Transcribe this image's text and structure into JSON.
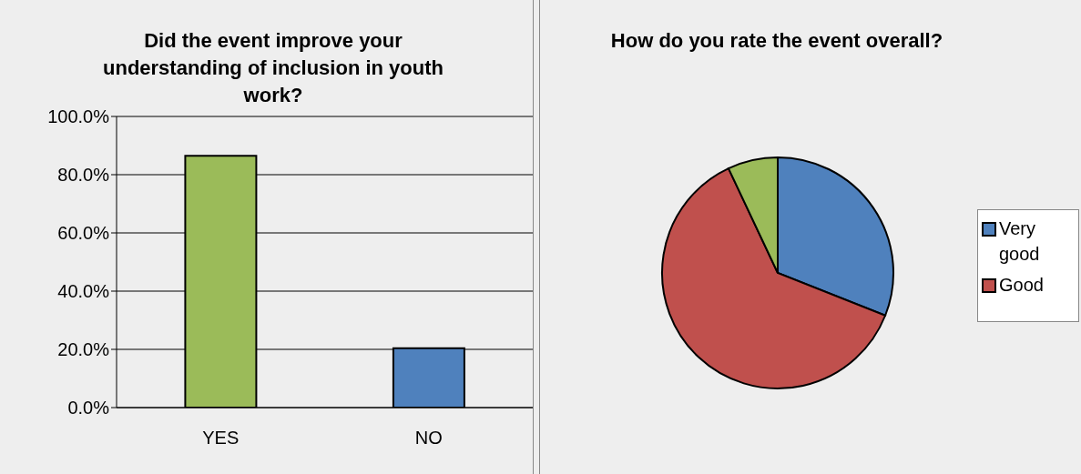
{
  "chart_data": [
    {
      "type": "bar",
      "title": "Did the event improve your understanding of inclusion in youth work?",
      "categories": [
        "YES",
        "NO"
      ],
      "values": [
        86.5,
        20.4
      ],
      "colors": [
        "#9bbb59",
        "#4f81bd"
      ],
      "ylim": [
        0,
        100
      ],
      "yticks": [
        {
          "value": 0,
          "label": "0.0%"
        },
        {
          "value": 20,
          "label": "20.0%"
        },
        {
          "value": 40,
          "label": "40.0%"
        },
        {
          "value": 60,
          "label": "60.0%"
        },
        {
          "value": 80,
          "label": "80.0%"
        },
        {
          "value": 100,
          "label": "100.0%"
        }
      ],
      "grid": "y",
      "legend": false
    },
    {
      "type": "pie",
      "title": "How do you rate the event overall?",
      "categories": [
        "Very good",
        "Good",
        null
      ],
      "values": [
        31,
        62,
        7
      ],
      "colors": [
        "#4f81bd",
        "#c0504d",
        "#9bbb59"
      ],
      "legend": "right"
    }
  ]
}
